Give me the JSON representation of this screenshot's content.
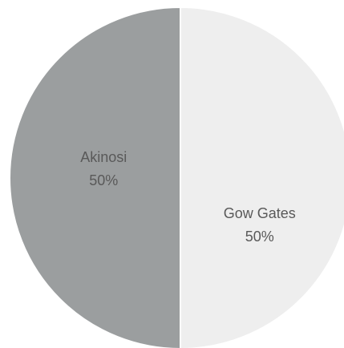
{
  "chart_data": {
    "type": "pie",
    "title": "",
    "slices": [
      {
        "label": "Gow Gates",
        "value": 50,
        "value_label": "50%",
        "color": "#EEEEEE"
      },
      {
        "label": "Akinosi",
        "value": 50,
        "value_label": "50%",
        "color": "#9B9E9F"
      }
    ],
    "legend": "none",
    "slice_border_color": "#FFFFFF"
  }
}
